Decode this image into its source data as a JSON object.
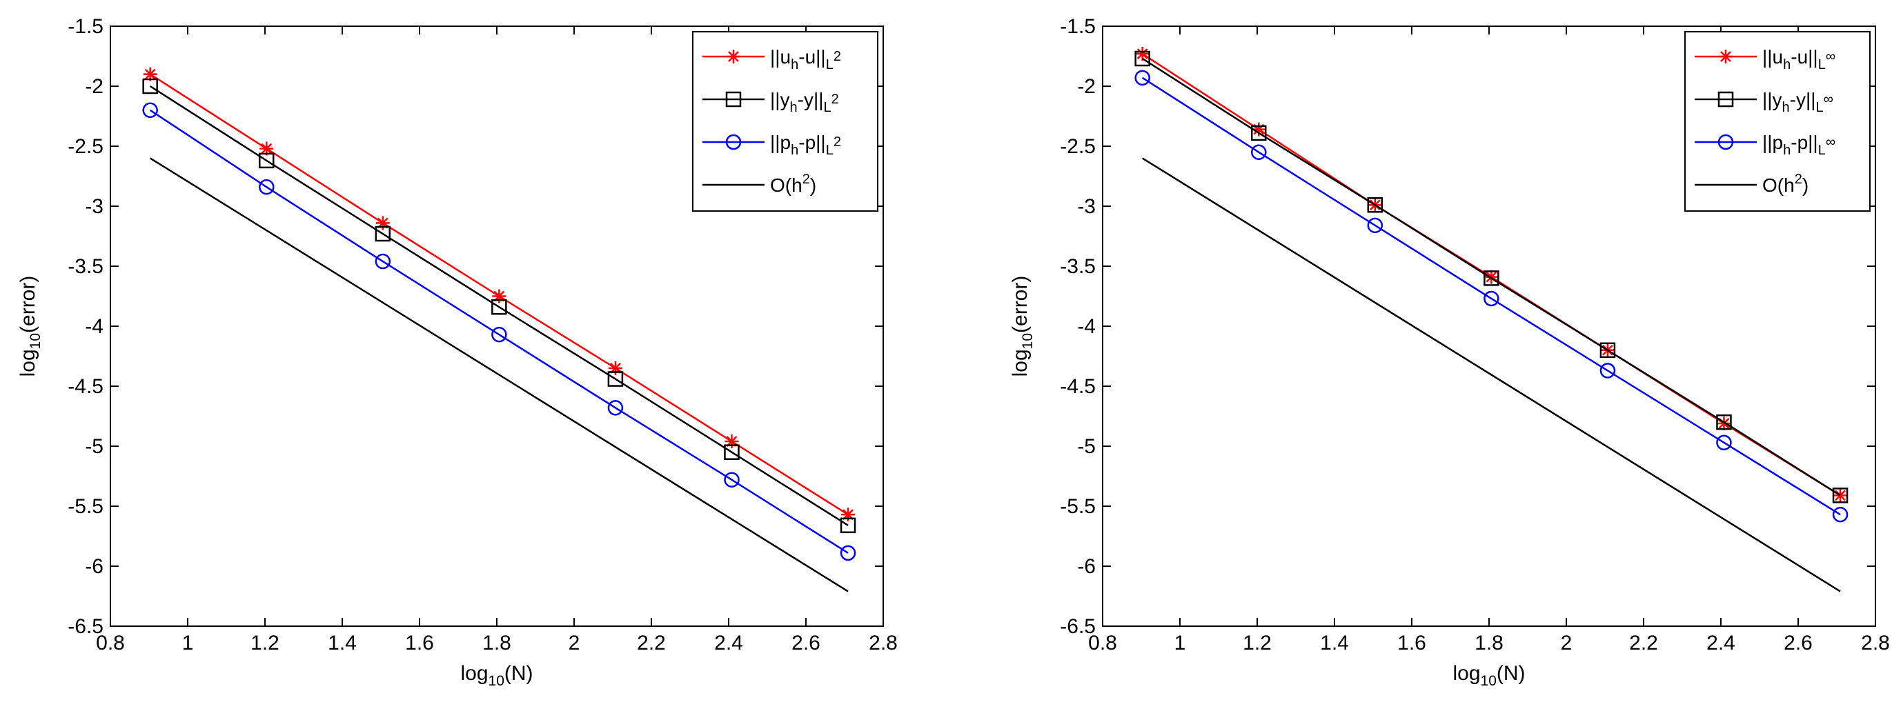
{
  "chart_data": [
    {
      "type": "line",
      "title": "",
      "xlabel": "log10(N)",
      "ylabel": "log10(error)",
      "xlim": [
        0.8,
        2.8
      ],
      "ylim": [
        -6.5,
        -1.5
      ],
      "xticks": [
        "0.8",
        "1",
        "1.2",
        "1.4",
        "1.6",
        "1.8",
        "2",
        "2.2",
        "2.4",
        "2.6",
        "2.8"
      ],
      "yticks": [
        "-1.5",
        "-2",
        "-2.5",
        "-3",
        "-3.5",
        "-4",
        "-4.5",
        "-5",
        "-5.5",
        "-6",
        "-6.5"
      ],
      "legend_position": "top-right",
      "x": [
        0.903,
        1.204,
        1.505,
        1.806,
        2.107,
        2.408,
        2.709
      ],
      "series": [
        {
          "name": "||uh-u||L2",
          "legend": {
            "base": "||u",
            "sub": "h",
            "mid": "-u||",
            "norm_sub": "L",
            "sup": "2"
          },
          "color": "#ff0000",
          "marker": "star",
          "values": [
            -1.9,
            -2.52,
            -3.14,
            -3.75,
            -4.35,
            -4.96,
            -5.57
          ]
        },
        {
          "name": "||yh-y||L2",
          "legend": {
            "base": "||y",
            "sub": "h",
            "mid": "-y||",
            "norm_sub": "L",
            "sup": "2"
          },
          "color": "#000000",
          "marker": "square",
          "values": [
            -2.0,
            -2.62,
            -3.23,
            -3.84,
            -4.44,
            -5.05,
            -5.66
          ]
        },
        {
          "name": "||ph-p||L2",
          "legend": {
            "base": "||p",
            "sub": "h",
            "mid": "-p||",
            "norm_sub": "L",
            "sup": "2"
          },
          "color": "#0000ff",
          "marker": "circle",
          "values": [
            -2.2,
            -2.84,
            -3.46,
            -4.07,
            -4.68,
            -5.28,
            -5.89
          ]
        },
        {
          "name": "O(h2)",
          "legend": {
            "base": "O(h",
            "sup2": "2",
            "end": ")"
          },
          "color": "#000000",
          "marker": "none",
          "x": [
            0.903,
            2.709
          ],
          "values": [
            -2.6,
            -6.21
          ]
        }
      ]
    },
    {
      "type": "line",
      "title": "",
      "xlabel": "log10(N)",
      "ylabel": "log10(error)",
      "xlim": [
        0.8,
        2.8
      ],
      "ylim": [
        -6.5,
        -1.5
      ],
      "xticks": [
        "0.8",
        "1",
        "1.2",
        "1.4",
        "1.6",
        "1.8",
        "2",
        "2.2",
        "2.4",
        "2.6",
        "2.8"
      ],
      "yticks": [
        "-1.5",
        "-2",
        "-2.5",
        "-3",
        "-3.5",
        "-4",
        "-4.5",
        "-5",
        "-5.5",
        "-6",
        "-6.5"
      ],
      "legend_position": "top-right",
      "x": [
        0.903,
        1.204,
        1.505,
        1.806,
        2.107,
        2.408,
        2.709
      ],
      "series": [
        {
          "name": "||uh-u||L∞",
          "legend": {
            "base": "||u",
            "sub": "h",
            "mid": "-u||",
            "norm_sub": "L",
            "sup": "∞"
          },
          "color": "#ff0000",
          "marker": "star",
          "values": [
            -1.73,
            -2.36,
            -2.99,
            -3.59,
            -4.2,
            -4.81,
            -5.41
          ]
        },
        {
          "name": "||yh-y||L∞",
          "legend": {
            "base": "||y",
            "sub": "h",
            "mid": "-y||",
            "norm_sub": "L",
            "sup": "∞"
          },
          "color": "#000000",
          "marker": "square",
          "values": [
            -1.77,
            -2.39,
            -2.99,
            -3.6,
            -4.2,
            -4.8,
            -5.41
          ]
        },
        {
          "name": "||ph-p||L∞",
          "legend": {
            "base": "||p",
            "sub": "h",
            "mid": "-p||",
            "norm_sub": "L",
            "sup": "∞"
          },
          "color": "#0000ff",
          "marker": "circle",
          "values": [
            -1.93,
            -2.55,
            -3.16,
            -3.77,
            -4.37,
            -4.97,
            -5.57
          ]
        },
        {
          "name": "O(h2)",
          "legend": {
            "base": "O(h",
            "sup2": "2",
            "end": ")"
          },
          "color": "#000000",
          "marker": "none",
          "x": [
            0.903,
            2.709
          ],
          "values": [
            -2.6,
            -6.21
          ]
        }
      ]
    }
  ]
}
